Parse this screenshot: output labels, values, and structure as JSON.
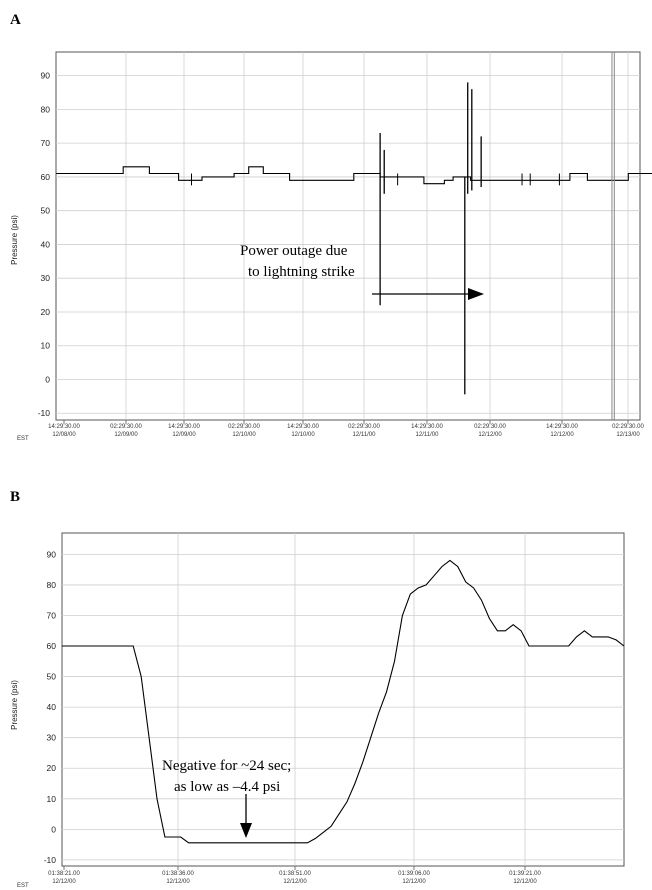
{
  "chart_data": [
    {
      "panel": "A",
      "type": "line",
      "ylabel": "Pressure (psi)",
      "ylim": [
        -12,
        97
      ],
      "yticks": [
        -10,
        0,
        10,
        20,
        30,
        40,
        50,
        60,
        70,
        80,
        90
      ],
      "grid": true,
      "x_prefix": "EST",
      "xticks": [
        {
          "time": "14:29:30.00",
          "date": "12/08/00"
        },
        {
          "time": "02:29:30.00",
          "date": "12/09/00"
        },
        {
          "time": "14:29:30.00",
          "date": "12/09/00"
        },
        {
          "time": "02:29:30.00",
          "date": "12/10/00"
        },
        {
          "time": "14:29:30.00",
          "date": "12/10/00"
        },
        {
          "time": "02:29:30.00",
          "date": "12/11/00"
        },
        {
          "time": "14:29:30.00",
          "date": "12/11/00"
        },
        {
          "time": "02:29:30.00",
          "date": "12/12/00"
        },
        {
          "time": "14:29:30.00",
          "date": "12/12/00"
        },
        {
          "time": "02:29:30.00",
          "date": "12/13/00"
        }
      ],
      "xrange": [
        0,
        10
      ],
      "series": [
        {
          "x": [
            0,
            1.15,
            1.15,
            1.6,
            1.6,
            2.1,
            2.1,
            2.5,
            2.5,
            3.05,
            3.05,
            3.3,
            3.3,
            3.55,
            3.55,
            4.0,
            4.0,
            5.1,
            5.1,
            5.55,
            5.55,
            5.8,
            5.8,
            6.3,
            6.3,
            6.65,
            6.65,
            6.8,
            6.8,
            7.1,
            7.1,
            8.8,
            8.8,
            9.1,
            9.1,
            9.8,
            9.8,
            10.3
          ],
          "y": [
            61,
            61,
            63,
            63,
            61,
            61,
            59,
            59,
            60,
            60,
            61,
            61,
            63,
            63,
            61,
            61,
            59,
            59,
            61,
            61,
            60,
            60,
            60,
            60,
            58,
            58,
            59,
            59,
            60,
            60,
            59,
            59,
            61,
            61,
            59,
            59,
            61,
            61
          ]
        }
      ],
      "spikes": [
        {
          "x": 5.55,
          "ymin": 22,
          "ymax": 73
        },
        {
          "x": 5.62,
          "ymin": 55,
          "ymax": 68
        },
        {
          "x": 7.0,
          "ymin": -4.4,
          "ymax": 60
        },
        {
          "x": 7.05,
          "ymin": 55,
          "ymax": 88
        },
        {
          "x": 7.12,
          "ymin": 56,
          "ymax": 86
        },
        {
          "x": 7.28,
          "ymin": 57,
          "ymax": 72
        }
      ],
      "ticks_small": [
        2.32,
        5.85,
        7.98,
        8.12,
        8.62
      ],
      "vlines": [
        9.52,
        9.56
      ],
      "annotation": {
        "lines": [
          "Power outage due",
          "to lightning strike"
        ]
      }
    },
    {
      "panel": "B",
      "type": "line",
      "ylabel": "Pressure (psi)",
      "ylim": [
        -12,
        97
      ],
      "yticks": [
        -10,
        0,
        10,
        20,
        30,
        40,
        50,
        60,
        70,
        80,
        90
      ],
      "grid": true,
      "x_prefix": "EST",
      "xticks": [
        {
          "time": "01:38:21.00",
          "date": "12/12/00"
        },
        {
          "time": "01:38:36.00",
          "date": "12/12/00"
        },
        {
          "time": "01:38:51.00",
          "date": "12/12/00"
        },
        {
          "time": "01:39:06.00",
          "date": "12/12/00"
        },
        {
          "time": "01:39:21.00",
          "date": "12/12/00"
        }
      ],
      "xrange": [
        0,
        71
      ],
      "series": [
        {
          "x": [
            0,
            9,
            10,
            11,
            12,
            13,
            14,
            15,
            16,
            17,
            18,
            19,
            20,
            30,
            31,
            32,
            33,
            34,
            35,
            36,
            37,
            38,
            39,
            40,
            41,
            42,
            43,
            44,
            45,
            46,
            47,
            48,
            49,
            50,
            51,
            52,
            53,
            54,
            55,
            56,
            57,
            58,
            59,
            60,
            61,
            62,
            63,
            64,
            65,
            66,
            67,
            68,
            69,
            70,
            71
          ],
          "y": [
            60,
            60,
            50,
            30,
            10,
            -2.5,
            -2.5,
            -2.5,
            -4.4,
            -4.4,
            -4.4,
            -4.4,
            -4.4,
            -4.4,
            -4.4,
            -3,
            -1,
            1,
            5,
            9,
            15,
            22,
            30,
            38,
            45,
            55,
            70,
            77,
            79,
            80,
            83,
            86,
            88,
            86,
            81,
            79,
            75,
            69,
            65,
            65,
            67,
            65,
            60,
            60,
            60,
            60,
            60,
            60,
            63,
            65,
            63,
            63,
            63,
            62,
            60
          ]
        }
      ],
      "annotation": {
        "lines": [
          "Negative for ~24 sec;",
          "as low as –4.4 psi"
        ]
      }
    }
  ]
}
